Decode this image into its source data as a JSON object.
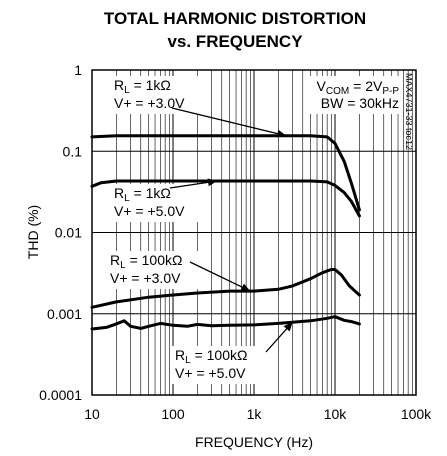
{
  "chart_data": {
    "type": "line",
    "title": "TOTAL HARMONIC DISTORTION",
    "subtitle": "vs. FREQUENCY",
    "xlabel": "FREQUENCY (Hz)",
    "ylabel": "THD (%)",
    "xscale": "log",
    "yscale": "log",
    "xlim": [
      10,
      100000
    ],
    "ylim": [
      0.0001,
      1
    ],
    "grid": true,
    "x_tick_labels": [
      "10",
      "100",
      "1k",
      "10k",
      "100k"
    ],
    "y_tick_labels": [
      "1",
      "0.1",
      "0.01",
      "0.001",
      "0.0001"
    ],
    "conditions": {
      "line1_pre": "V",
      "line1_sub": "COM",
      "line1_mid": " = 2V",
      "line1_sub2": "P-P",
      "line2": "BW = 30kHz"
    },
    "figure_id": "MAX4731-33 toc12",
    "series": [
      {
        "label_main": "R",
        "label_sub": "L",
        "label_value": " = 1kΩ",
        "label_supply": "V+ = +3.0V",
        "x": [
          10,
          20,
          50,
          100,
          200,
          500,
          1000,
          2000,
          5000,
          8000,
          10000,
          13000,
          16000,
          20000
        ],
        "y": [
          0.15,
          0.155,
          0.155,
          0.155,
          0.155,
          0.155,
          0.155,
          0.155,
          0.155,
          0.15,
          0.125,
          0.075,
          0.04,
          0.019
        ]
      },
      {
        "label_main": "R",
        "label_sub": "L",
        "label_value": " = 1kΩ",
        "label_supply": "V+ = +5.0V",
        "x": [
          10,
          13,
          20,
          50,
          100,
          200,
          500,
          1000,
          2000,
          5000,
          8000,
          10000,
          13000,
          16000,
          20000
        ],
        "y": [
          0.037,
          0.041,
          0.043,
          0.043,
          0.043,
          0.043,
          0.043,
          0.043,
          0.043,
          0.043,
          0.042,
          0.038,
          0.031,
          0.024,
          0.016
        ]
      },
      {
        "label_main": "R",
        "label_sub": "L",
        "label_value": " = 100kΩ",
        "label_supply": "V+ = +3.0V",
        "x": [
          10,
          20,
          50,
          100,
          200,
          500,
          1000,
          2000,
          3000,
          5000,
          7000,
          9000,
          10000,
          12000,
          15000,
          20000
        ],
        "y": [
          0.0012,
          0.0014,
          0.0016,
          0.0017,
          0.0018,
          0.0019,
          0.0019,
          0.002,
          0.0022,
          0.0027,
          0.0032,
          0.0035,
          0.0035,
          0.003,
          0.0022,
          0.0017
        ]
      },
      {
        "label_main": "R",
        "label_sub": "L",
        "label_value": " = 100kΩ",
        "label_supply": "V+ = +5.0V",
        "x": [
          10,
          15,
          20,
          25,
          30,
          40,
          50,
          70,
          100,
          150,
          200,
          300,
          500,
          1000,
          2000,
          5000,
          8000,
          10000,
          13000,
          16000,
          20000
        ],
        "y": [
          0.00065,
          0.00068,
          0.00075,
          0.00082,
          0.0007,
          0.00066,
          0.0007,
          0.00076,
          0.00072,
          0.0007,
          0.00074,
          0.00071,
          0.00072,
          0.00073,
          0.00076,
          0.00082,
          0.00088,
          0.00092,
          0.00083,
          0.0008,
          0.00075
        ]
      }
    ]
  }
}
